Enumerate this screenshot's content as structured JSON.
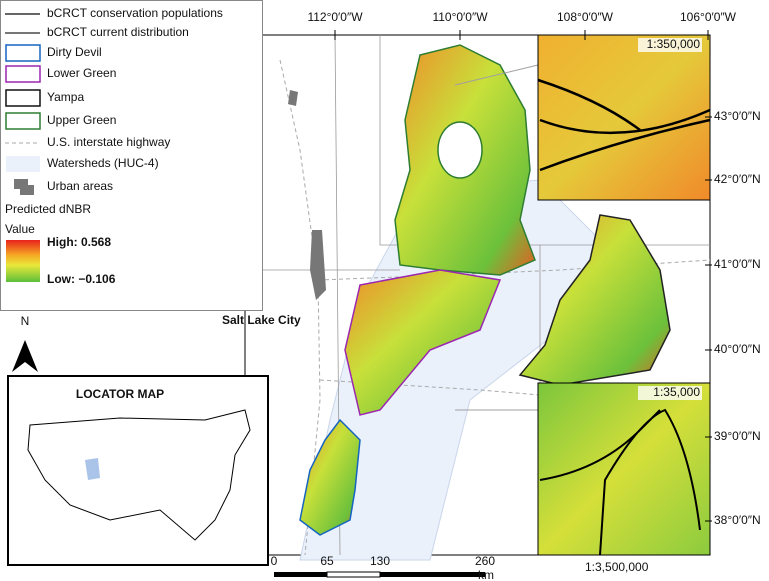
{
  "legend": {
    "items": [
      "bCRCT conservation populations",
      "bCRCT current distribution",
      "Dirty Devil",
      "Lower Green",
      "Yampa",
      "Upper Green",
      "U.S. interstate highway",
      "Watersheds (HUC-4)",
      "Urban areas"
    ],
    "dnbr_title": "Predicted dNBR",
    "value_title": "Value",
    "high": "High: 0.568",
    "low": "Low: −0.106"
  },
  "map": {
    "city": "Salt Lake City",
    "north": "N",
    "longitudes": [
      "112°0′0″W",
      "110°0′0″W",
      "108°0′0″W",
      "106°0′0″W"
    ],
    "latitudes": [
      "43°0′0″N",
      "42°0′0″N",
      "41°0′0″N",
      "40°0′0″N",
      "39°0′0″N",
      "38°0′0″N"
    ],
    "inset_scales": [
      "1:350,000",
      "1:35,000"
    ],
    "scale_bar": {
      "ticks": [
        "0",
        "65",
        "130",
        "260"
      ],
      "unit": "km",
      "ratio": "1:3,500,000"
    }
  },
  "locator": {
    "title": "LOCATOR MAP"
  }
}
